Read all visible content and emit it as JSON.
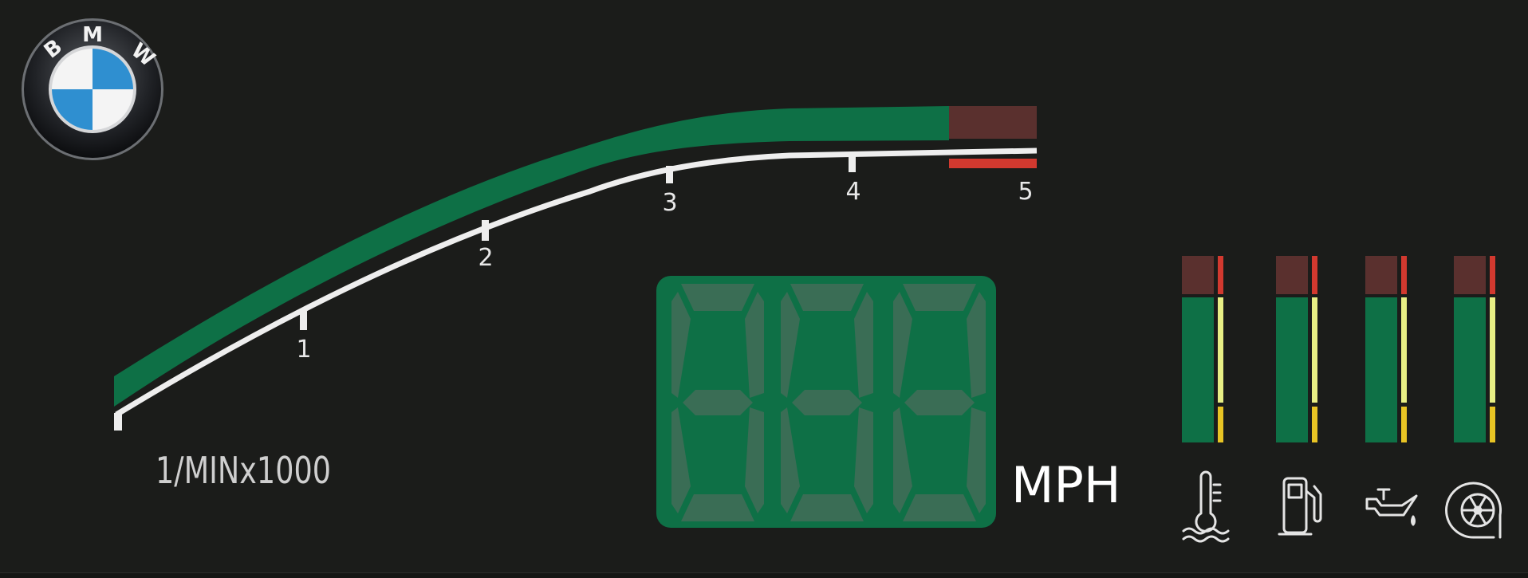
{
  "logo": {
    "icon": "bmw-roundel-icon",
    "letters": [
      "B",
      "M",
      "W"
    ]
  },
  "tachometer": {
    "unit_label": "1/MINx1000",
    "ticks": [
      "1",
      "2",
      "3",
      "4",
      "5"
    ],
    "redline_from": 4.5,
    "max": 5,
    "colors": {
      "band": "#0e7046",
      "redzone": "#5a302e",
      "redline": "#d2392f",
      "scale": "#eeeeee"
    }
  },
  "speedometer": {
    "unit_label": "MPH",
    "digits": 3,
    "colors": {
      "panel": "#0e7046",
      "segment": "#3a6d55"
    }
  },
  "gauges": [
    {
      "name": "coolant-temperature",
      "icon": "coolant-temperature-icon"
    },
    {
      "name": "fuel",
      "icon": "fuel-pump-icon"
    },
    {
      "name": "oil",
      "icon": "oil-can-icon"
    },
    {
      "name": "turbo",
      "icon": "turbo-icon"
    }
  ],
  "gauge_colors": {
    "bar": "#0e7046",
    "warn": "#5a302e",
    "red": "#d2392f",
    "yellow": "#e8ef85",
    "amber": "#e8c424"
  }
}
